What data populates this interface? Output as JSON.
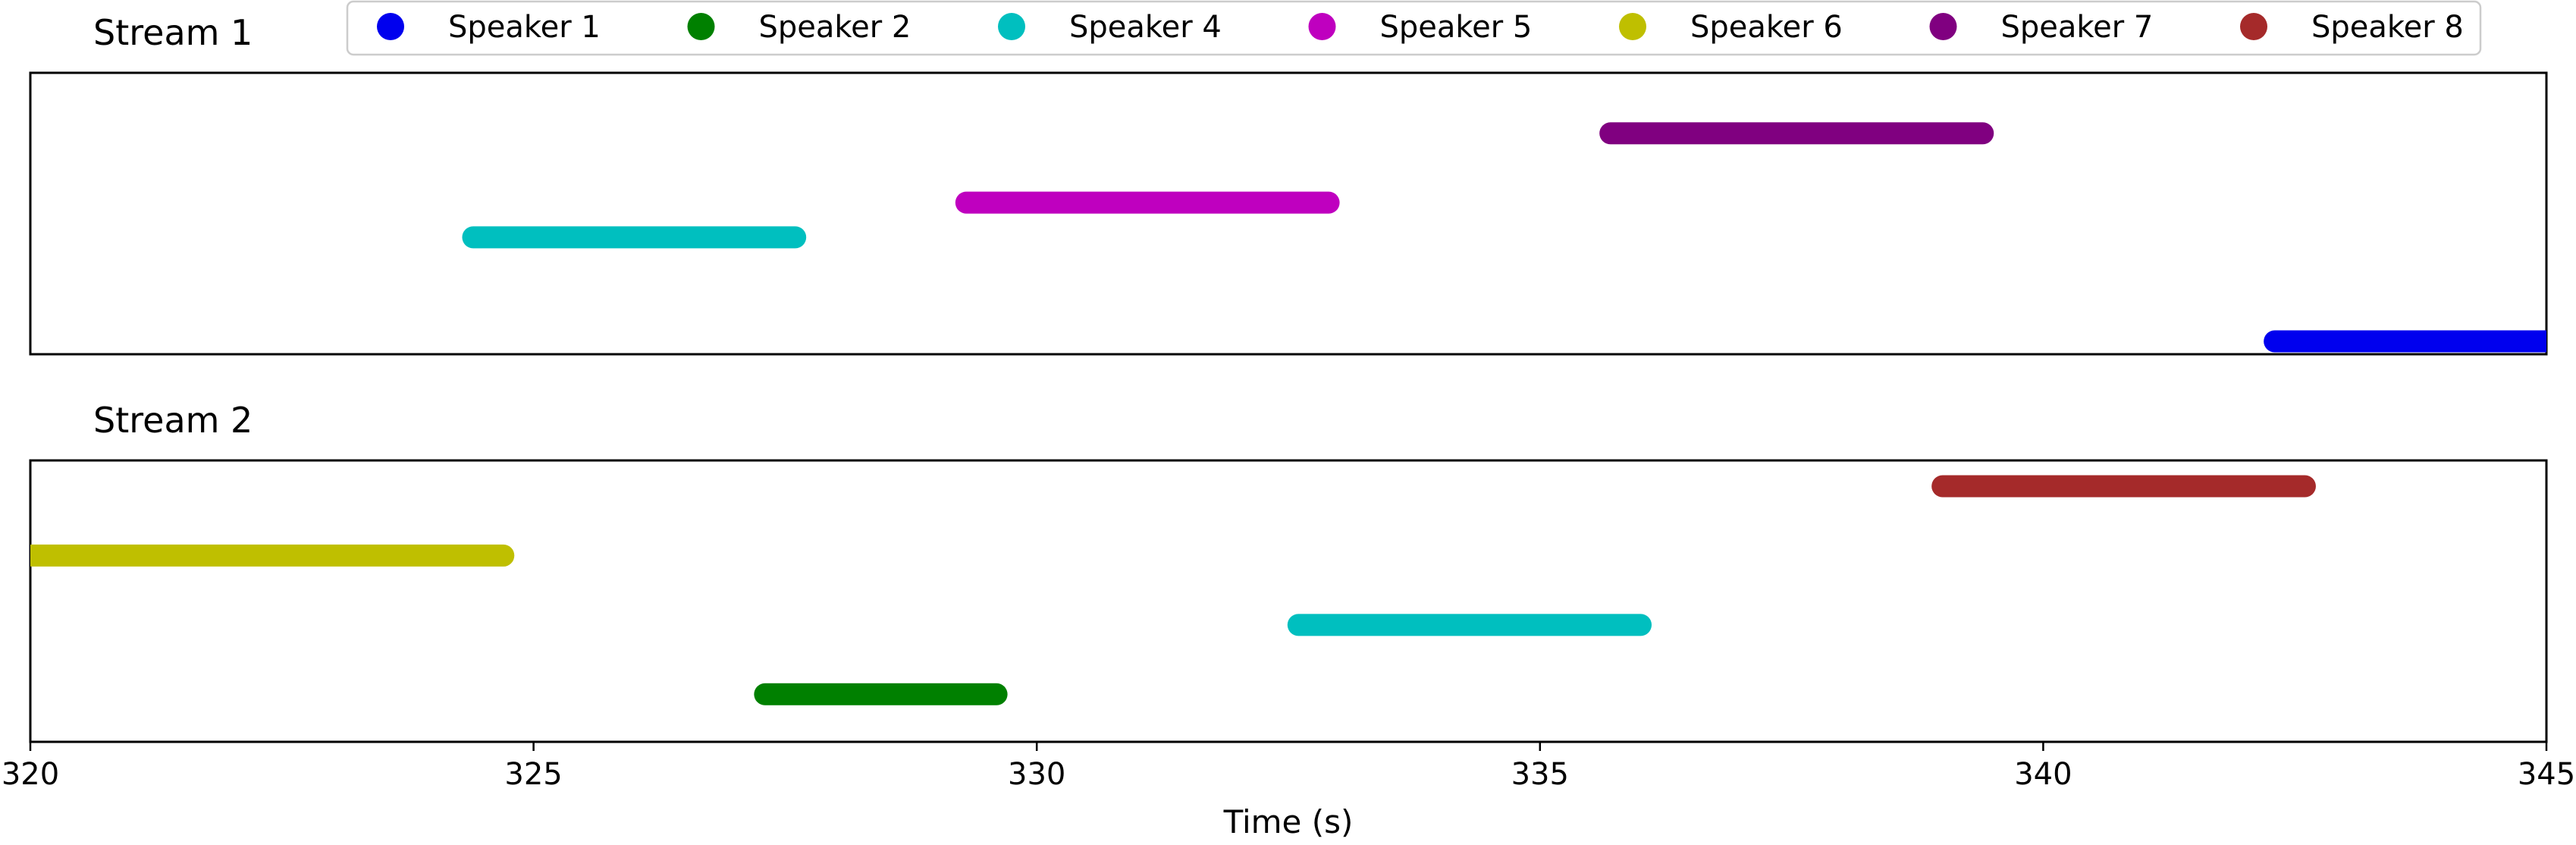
{
  "chart_data": {
    "type": "timeline",
    "xlabel": "Time (s)",
    "xlim": [
      320,
      345
    ],
    "xticks": [
      {
        "value": 320,
        "label": "320"
      },
      {
        "value": 325,
        "label": "325"
      },
      {
        "value": 330,
        "label": "330"
      },
      {
        "value": 335,
        "label": "335"
      },
      {
        "value": 340,
        "label": "340"
      },
      {
        "value": 345,
        "label": "345"
      }
    ],
    "legend": {
      "placement": "top-center",
      "entries": [
        {
          "speaker": "Speaker 1",
          "color": "#0000ee"
        },
        {
          "speaker": "Speaker 2",
          "color": "#008000"
        },
        {
          "speaker": "Speaker 4",
          "color": "#00bfbf"
        },
        {
          "speaker": "Speaker 5",
          "color": "#bf00bf"
        },
        {
          "speaker": "Speaker 6",
          "color": "#bfbf00"
        },
        {
          "speaker": "Speaker 7",
          "color": "#800080"
        },
        {
          "speaker": "Speaker 8",
          "color": "#a52a2a"
        }
      ]
    },
    "streams": [
      {
        "title": "Stream 1",
        "lanes": 7,
        "segments": [
          {
            "speaker": "Speaker 4",
            "start": 324.4,
            "end": 327.6,
            "lane": 3
          },
          {
            "speaker": "Speaker 5",
            "start": 329.3,
            "end": 332.9,
            "lane": 4
          },
          {
            "speaker": "Speaker 7",
            "start": 335.7,
            "end": 339.4,
            "lane": 6
          },
          {
            "speaker": "Speaker 1",
            "start": 342.3,
            "end": 345.0,
            "lane": 0
          }
        ]
      },
      {
        "title": "Stream 2",
        "lanes": 7,
        "segments": [
          {
            "speaker": "Speaker 6",
            "start": 320.0,
            "end": 324.7,
            "lane": 5
          },
          {
            "speaker": "Speaker 2",
            "start": 327.3,
            "end": 329.6,
            "lane": 1
          },
          {
            "speaker": "Speaker 4",
            "start": 332.6,
            "end": 336.0,
            "lane": 3
          },
          {
            "speaker": "Speaker 8",
            "start": 339.0,
            "end": 342.6,
            "lane": 7
          }
        ]
      }
    ]
  }
}
